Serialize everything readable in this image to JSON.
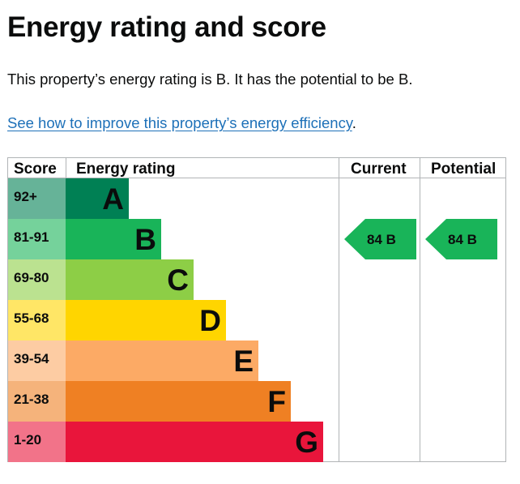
{
  "heading": "Energy rating and score",
  "summary": "This property’s energy rating is B. It has the potential to be B.",
  "link": {
    "text": "See how to improve this property’s energy efficiency",
    "suffix": "."
  },
  "chart_data": {
    "type": "table",
    "columns": [
      "Score",
      "Energy rating",
      "Current",
      "Potential"
    ],
    "bands": [
      {
        "score_range": "92+",
        "rating": "A",
        "color": "#008054",
        "score_color": "#66b398"
      },
      {
        "score_range": "81-91",
        "rating": "B",
        "color": "#19b459",
        "score_color": "#75d29b"
      },
      {
        "score_range": "69-80",
        "rating": "C",
        "color": "#8dce46",
        "score_color": "#bbe290"
      },
      {
        "score_range": "55-68",
        "rating": "D",
        "color": "#ffd500",
        "score_color": "#ffe666"
      },
      {
        "score_range": "39-54",
        "rating": "E",
        "color": "#fcaa65",
        "score_color": "#fdcca3"
      },
      {
        "score_range": "21-38",
        "rating": "F",
        "color": "#ef8023",
        "score_color": "#f5b37b"
      },
      {
        "score_range": "1-20",
        "rating": "G",
        "color": "#e9153b",
        "score_color": "#f27389"
      }
    ],
    "current": {
      "score": 84,
      "rating": "B",
      "label": "84  B"
    },
    "potential": {
      "score": 84,
      "rating": "B",
      "label": "84  B"
    }
  }
}
